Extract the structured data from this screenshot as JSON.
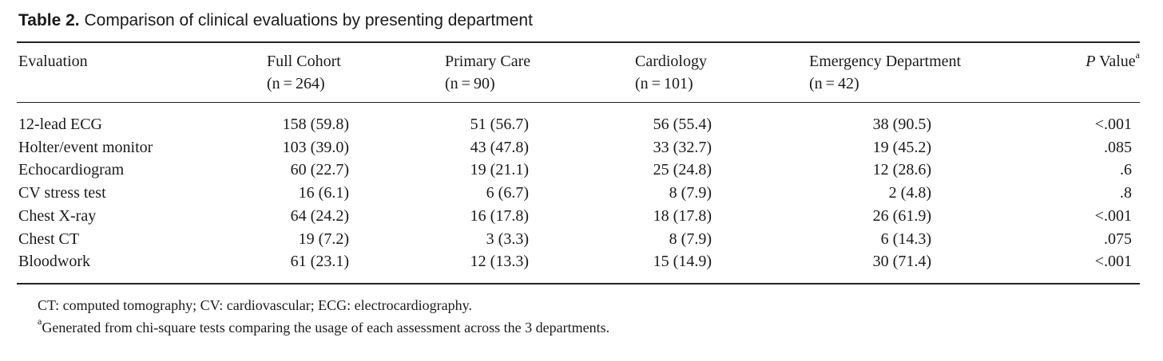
{
  "caption": {
    "label": "Table 2.",
    "text": " Comparison of clinical evaluations by presenting department"
  },
  "headers": {
    "evaluation": "Evaluation",
    "full_cohort": {
      "name": "Full Cohort",
      "n": "(n = 264)"
    },
    "primary_care": {
      "name": "Primary Care",
      "n": "(n = 90)"
    },
    "cardiology": {
      "name": "Cardiology",
      "n": "(n = 101)"
    },
    "emergency": {
      "name": "Emergency Department",
      "n": "(n = 42)"
    },
    "p_value": {
      "italic": "P",
      "text": " Value",
      "sup": "a"
    }
  },
  "rows": [
    {
      "evaluation": "12-lead ECG",
      "full": "158 (59.8)",
      "pc": "51 (56.7)",
      "card": "56 (55.4)",
      "ed": "38 (90.5)",
      "p": "<.001"
    },
    {
      "evaluation": "Holter/event monitor",
      "full": "103 (39.0)",
      "pc": "43 (47.8)",
      "card": "33 (32.7)",
      "ed": "19 (45.2)",
      "p": ".085"
    },
    {
      "evaluation": "Echocardiogram",
      "full": "60 (22.7)",
      "pc": "19 (21.1)",
      "card": "25 (24.8)",
      "ed": "12 (28.6)",
      "p": ".6"
    },
    {
      "evaluation": "CV stress test",
      "full": "16 (6.1)",
      "pc": "6 (6.7)",
      "card": "8 (7.9)",
      "ed": "2 (4.8)",
      "p": ".8"
    },
    {
      "evaluation": "Chest X-ray",
      "full": "64 (24.2)",
      "pc": "16 (17.8)",
      "card": "18 (17.8)",
      "ed": "26 (61.9)",
      "p": "<.001"
    },
    {
      "evaluation": "Chest CT",
      "full": "19 (7.2)",
      "pc": "3 (3.3)",
      "card": "8 (7.9)",
      "ed": "6 (14.3)",
      "p": ".075"
    },
    {
      "evaluation": "Bloodwork",
      "full": "61 (23.1)",
      "pc": "12 (13.3)",
      "card": "15 (14.9)",
      "ed": "30 (71.4)",
      "p": "<.001"
    }
  ],
  "footnotes": {
    "abbreviations": "CT: computed tomography; CV: cardiovascular; ECG: electrocardiography.",
    "a_marker": "a",
    "a_text": "Generated from chi-square tests comparing the usage of each assessment across the 3 departments."
  }
}
